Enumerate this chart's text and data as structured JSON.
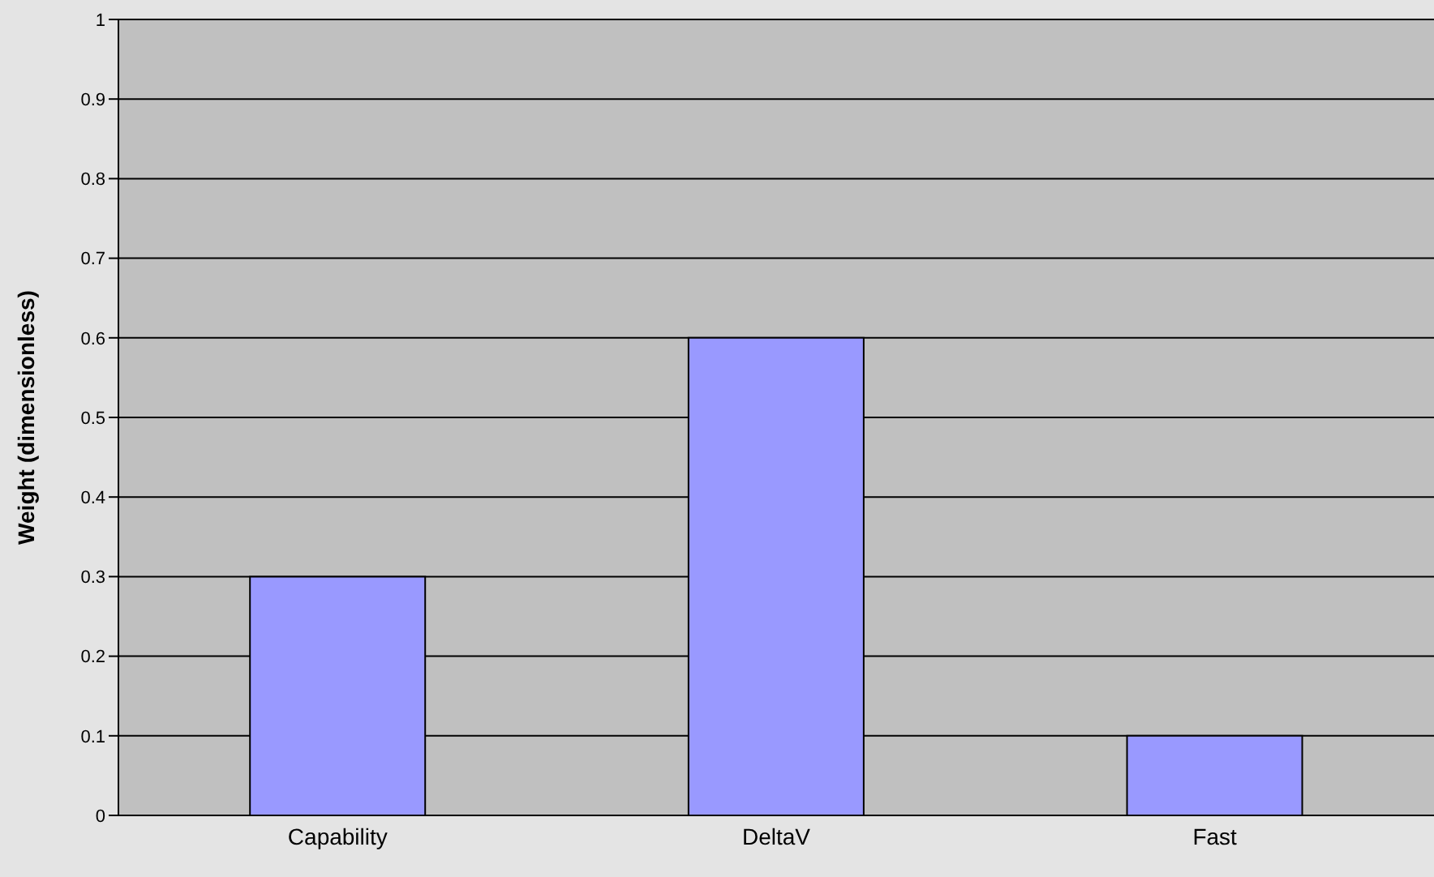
{
  "chart_data": {
    "type": "bar",
    "ylabel": "Weight (dimensionless)",
    "categories": [
      "Capability",
      "DeltaV",
      "Fast"
    ],
    "series": [
      {
        "color": "#9999ff",
        "values": [
          0.3,
          0.6,
          0.1
        ]
      }
    ],
    "ylim": [
      0,
      1
    ],
    "yticks": [
      0,
      0.1,
      0.2,
      0.3,
      0.4,
      0.5,
      0.6,
      0.7,
      0.8,
      0.9,
      1
    ],
    "grid": "y",
    "legend": false
  }
}
